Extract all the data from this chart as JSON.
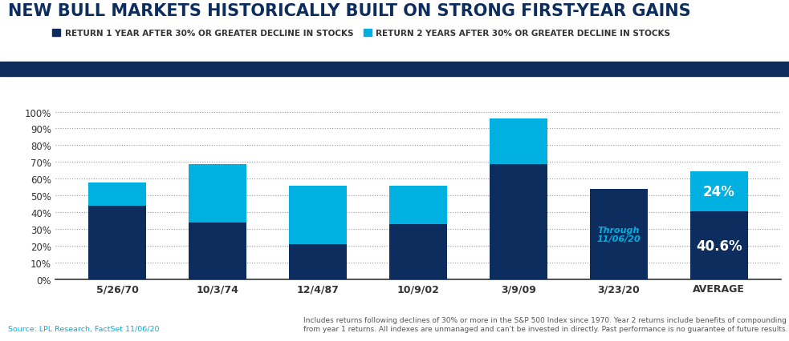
{
  "title": "NEW BULL MARKETS HISTORICALLY BUILT ON STRONG FIRST-YEAR GAINS",
  "categories": [
    "5/26/70",
    "10/3/74",
    "12/4/87",
    "10/9/02",
    "3/9/09",
    "3/23/20",
    "AVERAGE"
  ],
  "year1_values": [
    44,
    34,
    21,
    33,
    69,
    54,
    40.6
  ],
  "year2_additional": [
    14,
    35,
    35,
    23,
    27,
    0,
    24
  ],
  "color_year1": "#0d2d5e",
  "color_year2": "#00b0e0",
  "legend1": "RETURN 1 YEAR AFTER 30% OR GREATER DECLINE IN STOCKS",
  "legend2": "RETURN 2 YEARS AFTER 30% OR GREATER DECLINE IN STOCKS",
  "ylim": [
    0,
    110
  ],
  "yticks": [
    0,
    10,
    20,
    30,
    40,
    50,
    60,
    70,
    80,
    90,
    100
  ],
  "source_text": "Source: LPL Research, FactSet 11/06/20",
  "disclaimer_text": "Includes returns following declines of 30% or more in the S&P 500 Index since 1970. Year 2 returns include benefits of compounding\nfrom year 1 returns. All indexes are unmanaged and can't be invested in directly. Past performance is no guarantee of future results.",
  "header_bar_color": "#0d2d5e",
  "bg_color": "#ffffff",
  "annotation_3923": "Through\n11/06/20",
  "annotation_avg_y1": "40.6%",
  "annotation_avg_y2": "24%"
}
